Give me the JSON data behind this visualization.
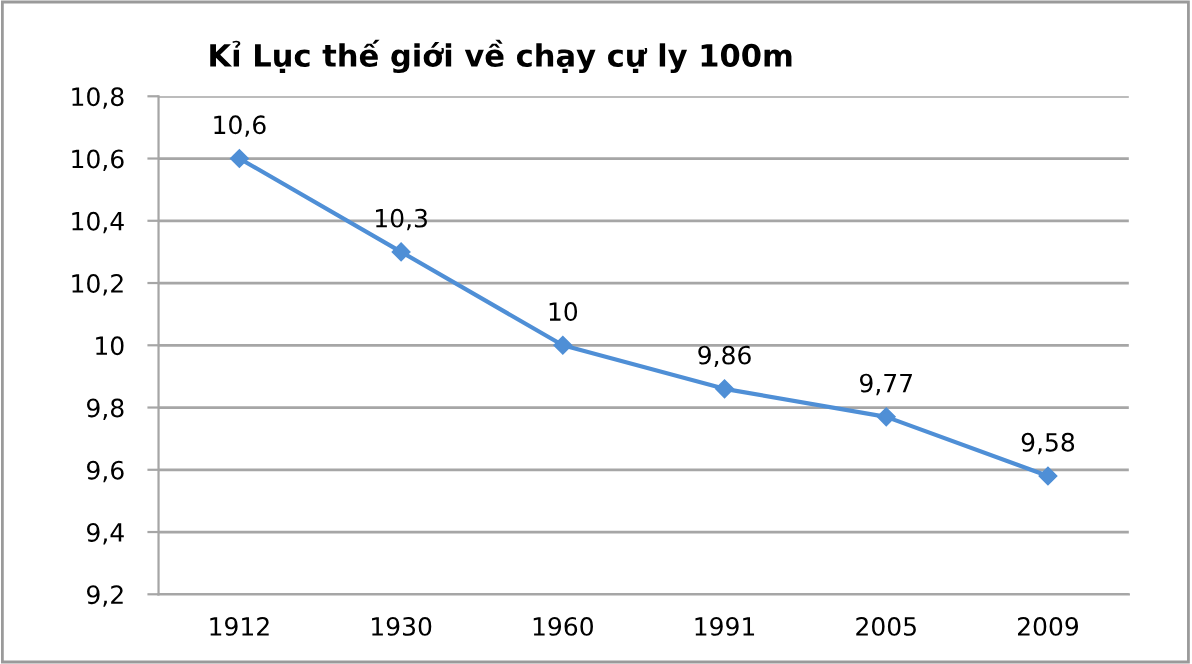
{
  "chart_data": {
    "type": "line",
    "title": "Kỉ Lục thế giới về chạy cự ly 100m",
    "categories": [
      "1912",
      "1930",
      "1960",
      "1991",
      "2005",
      "2009"
    ],
    "series": [
      {
        "color": "#4f8fd6",
        "values": [
          10.6,
          10.3,
          10.0,
          9.86,
          9.77,
          9.58
        ]
      }
    ],
    "value_labels": [
      "10,6",
      "10,3",
      "10",
      "9,86",
      "9,77",
      "9,58"
    ],
    "ylim": [
      9.2,
      10.8
    ],
    "yticks": [
      {
        "value": 9.2,
        "label": "9,2"
      },
      {
        "value": 9.4,
        "label": "9,4"
      },
      {
        "value": 9.6,
        "label": "9,6"
      },
      {
        "value": 9.8,
        "label": "9,8"
      },
      {
        "value": 10,
        "label": "10"
      },
      {
        "value": 10.2,
        "label": "10,2"
      },
      {
        "value": 10.4,
        "label": "10,4"
      },
      {
        "value": 10.6,
        "label": "10,6"
      },
      {
        "value": 10.8,
        "label": "10,8"
      }
    ],
    "grid": "y",
    "marker": "diamond",
    "line_style": "solid",
    "legend": false
  }
}
